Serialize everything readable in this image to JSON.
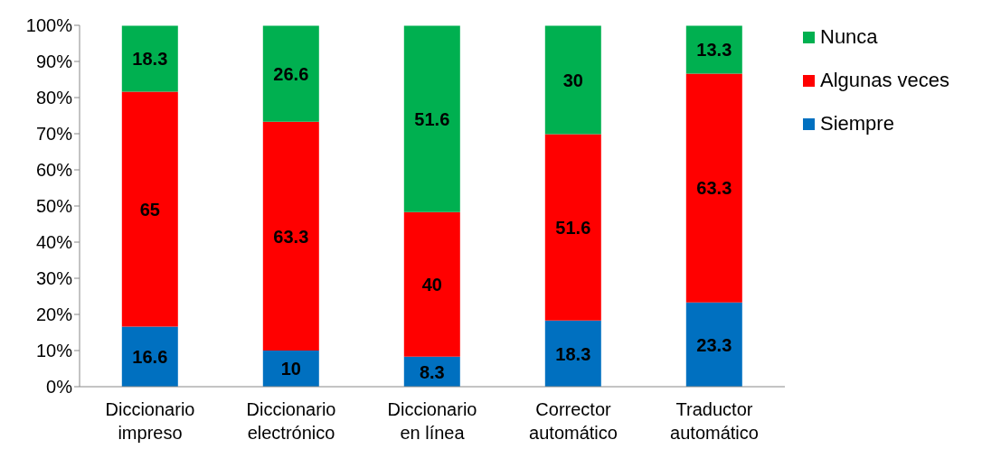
{
  "chart_data": {
    "type": "bar",
    "stacked": true,
    "categories": [
      "Diccionario impreso",
      "Diccionario electrónico",
      "Diccionario en línea",
      "Corrector automático",
      "Traductor automático"
    ],
    "series": [
      {
        "name": "Siempre",
        "color": "#0070c0",
        "values": [
          16.6,
          10,
          8.3,
          18.3,
          23.3
        ]
      },
      {
        "name": "Algunas veces",
        "color": "#ff0000",
        "values": [
          65,
          63.3,
          40,
          51.6,
          63.3
        ]
      },
      {
        "name": "Nunca",
        "color": "#00b050",
        "values": [
          18.3,
          26.6,
          51.6,
          30,
          13.3
        ]
      }
    ],
    "ylim": [
      0,
      100
    ],
    "yticks": [
      {
        "value": 0,
        "label": "0%"
      },
      {
        "value": 10,
        "label": "10%"
      },
      {
        "value": 20,
        "label": "20%"
      },
      {
        "value": 30,
        "label": "30%"
      },
      {
        "value": 40,
        "label": "40%"
      },
      {
        "value": 50,
        "label": "50%"
      },
      {
        "value": 60,
        "label": "60%"
      },
      {
        "value": 70,
        "label": "70%"
      },
      {
        "value": 80,
        "label": "80%"
      },
      {
        "value": 90,
        "label": "90%"
      },
      {
        "value": 100,
        "label": "100%"
      }
    ],
    "data_labels": true,
    "legend": "top right",
    "grid": false
  }
}
